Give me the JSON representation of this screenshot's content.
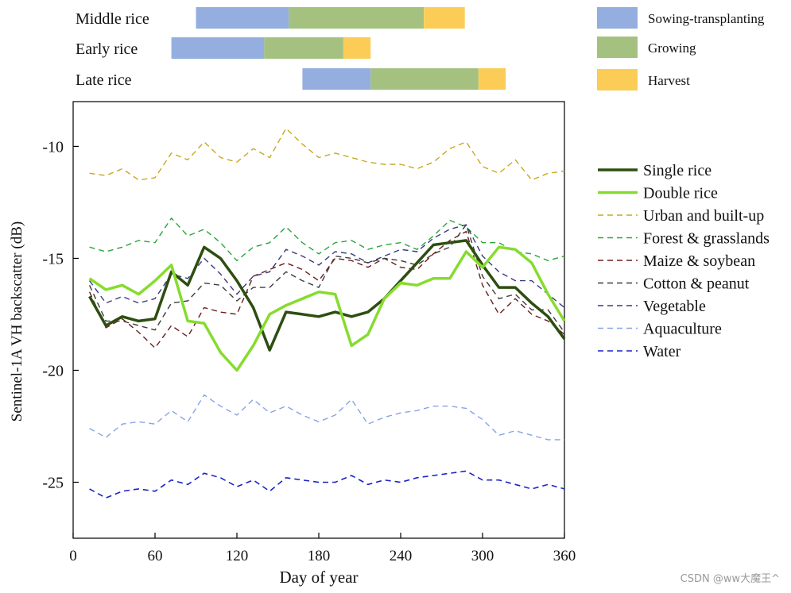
{
  "watermark": "CSDN @ww大魔王^",
  "phenology": {
    "rows": [
      {
        "label": "Middle rice",
        "stages": [
          {
            "stage": "sowing",
            "start": 90,
            "end": 158
          },
          {
            "stage": "growing",
            "start": 158,
            "end": 257
          },
          {
            "stage": "harvest",
            "start": 257,
            "end": 287
          }
        ]
      },
      {
        "label": "Early rice",
        "stages": [
          {
            "stage": "sowing",
            "start": 72,
            "end": 140
          },
          {
            "stage": "growing",
            "start": 140,
            "end": 198
          },
          {
            "stage": "harvest",
            "start": 198,
            "end": 218
          }
        ]
      },
      {
        "label": "Late rice",
        "stages": [
          {
            "stage": "sowing",
            "start": 168,
            "end": 218
          },
          {
            "stage": "growing",
            "start": 218,
            "end": 297
          },
          {
            "stage": "harvest",
            "start": 297,
            "end": 317
          }
        ]
      }
    ],
    "legend": [
      {
        "key": "sowing",
        "label": "Sowing-transplanting",
        "color": "#94aee0"
      },
      {
        "key": "growing",
        "label": "Growing",
        "color": "#a4c180"
      },
      {
        "key": "harvest",
        "label": "Harvest",
        "color": "#fbcd57"
      }
    ]
  },
  "chart_data": {
    "type": "line",
    "title": "",
    "xlabel": "Day of year",
    "ylabel": "Sentinel-1A VH backscatter (dB)",
    "xlim": [
      0,
      360
    ],
    "ylim": [
      -27.5,
      -8
    ],
    "xticks": [
      0,
      60,
      120,
      180,
      240,
      300,
      360
    ],
    "yticks": [
      -10,
      -15,
      -20,
      -25
    ],
    "grid": false,
    "legend_position": "right",
    "series": [
      {
        "name": "Single rice",
        "color": "#2d4e10",
        "width": 3.5,
        "dash": "",
        "x": [
          12,
          24,
          36,
          48,
          60,
          72,
          84,
          96,
          108,
          120,
          132,
          144,
          156,
          168,
          180,
          192,
          204,
          216,
          228,
          240,
          252,
          264,
          276,
          288,
          300,
          312,
          324,
          336,
          348,
          360
        ],
        "y": [
          -16.7,
          -18.0,
          -17.6,
          -17.8,
          -17.7,
          -15.6,
          -16.2,
          -14.5,
          -15.0,
          -16.0,
          -17.2,
          -19.1,
          -17.4,
          -17.5,
          -17.6,
          -17.4,
          -17.6,
          -17.4,
          -16.8,
          -16.0,
          -15.2,
          -14.4,
          -14.3,
          -14.2,
          -15.3,
          -16.3,
          -16.3,
          -17.0,
          -17.6,
          -18.6
        ]
      },
      {
        "name": "Double rice",
        "color": "#86dc2e",
        "width": 3.5,
        "dash": "",
        "x": [
          12,
          24,
          36,
          48,
          60,
          72,
          84,
          96,
          108,
          120,
          132,
          144,
          156,
          168,
          180,
          192,
          204,
          216,
          228,
          240,
          252,
          264,
          276,
          288,
          300,
          312,
          324,
          336,
          348,
          360
        ],
        "y": [
          -15.9,
          -16.4,
          -16.2,
          -16.6,
          -16.0,
          -15.3,
          -17.8,
          -17.9,
          -19.2,
          -20.0,
          -18.9,
          -17.5,
          -17.1,
          -16.8,
          -16.5,
          -16.6,
          -18.9,
          -18.4,
          -16.8,
          -16.1,
          -16.2,
          -15.9,
          -15.9,
          -14.7,
          -15.4,
          -14.5,
          -14.6,
          -15.2,
          -16.6,
          -17.8
        ]
      },
      {
        "name": "Urban and built-up",
        "color": "#c9a820",
        "width": 1.4,
        "dash": "7,5",
        "x": [
          12,
          24,
          36,
          48,
          60,
          72,
          84,
          96,
          108,
          120,
          132,
          144,
          156,
          168,
          180,
          192,
          204,
          216,
          228,
          240,
          252,
          264,
          276,
          288,
          300,
          312,
          324,
          336,
          348,
          360
        ],
        "y": [
          -11.2,
          -11.3,
          -11.0,
          -11.5,
          -11.4,
          -10.3,
          -10.6,
          -9.8,
          -10.5,
          -10.7,
          -10.1,
          -10.5,
          -9.2,
          -9.9,
          -10.5,
          -10.3,
          -10.5,
          -10.7,
          -10.8,
          -10.8,
          -11.0,
          -10.7,
          -10.1,
          -9.8,
          -10.9,
          -11.2,
          -10.6,
          -11.5,
          -11.2,
          -11.1
        ]
      },
      {
        "name": "Forest & grasslands",
        "color": "#2aa53a",
        "width": 1.4,
        "dash": "7,5",
        "x": [
          12,
          24,
          36,
          48,
          60,
          72,
          84,
          96,
          108,
          120,
          132,
          144,
          156,
          168,
          180,
          192,
          204,
          216,
          228,
          240,
          252,
          264,
          276,
          288,
          300,
          312,
          324,
          336,
          348,
          360
        ],
        "y": [
          -14.5,
          -14.7,
          -14.5,
          -14.2,
          -14.3,
          -13.2,
          -14.0,
          -13.7,
          -14.3,
          -15.1,
          -14.5,
          -14.3,
          -13.6,
          -14.3,
          -14.8,
          -14.3,
          -14.2,
          -14.6,
          -14.4,
          -14.3,
          -14.6,
          -14.0,
          -13.3,
          -13.6,
          -14.3,
          -14.3,
          -14.7,
          -14.8,
          -15.1,
          -14.9
        ]
      },
      {
        "name": "Maize & soybean",
        "color": "#6e1c1c",
        "width": 1.4,
        "dash": "7,5",
        "x": [
          12,
          24,
          36,
          48,
          60,
          72,
          84,
          96,
          108,
          120,
          132,
          144,
          156,
          168,
          180,
          192,
          204,
          216,
          228,
          240,
          252,
          264,
          276,
          288,
          300,
          312,
          324,
          336,
          348,
          360
        ],
        "y": [
          -16.5,
          -18.1,
          -17.7,
          -18.3,
          -19.0,
          -18.0,
          -18.5,
          -17.2,
          -17.4,
          -17.5,
          -15.8,
          -15.5,
          -15.2,
          -15.5,
          -16.0,
          -15.0,
          -15.1,
          -15.4,
          -15.0,
          -15.4,
          -15.5,
          -14.8,
          -14.2,
          -13.8,
          -16.2,
          -17.5,
          -16.8,
          -17.5,
          -17.8,
          -18.4
        ]
      },
      {
        "name": "Cotton & peanut",
        "color": "#3c3c3c",
        "width": 1.4,
        "dash": "7,5",
        "x": [
          12,
          24,
          36,
          48,
          60,
          72,
          84,
          96,
          108,
          120,
          132,
          144,
          156,
          168,
          180,
          192,
          204,
          216,
          228,
          240,
          252,
          264,
          276,
          288,
          300,
          312,
          324,
          336,
          348,
          360
        ],
        "y": [
          -16.2,
          -17.8,
          -17.8,
          -18.0,
          -18.2,
          -17.0,
          -16.9,
          -16.1,
          -16.2,
          -16.9,
          -16.3,
          -16.3,
          -15.6,
          -16.0,
          -16.3,
          -14.9,
          -15.0,
          -15.2,
          -15.0,
          -15.1,
          -15.3,
          -14.8,
          -14.5,
          -13.5,
          -15.8,
          -16.8,
          -16.6,
          -17.3,
          -17.3,
          -18.3
        ]
      },
      {
        "name": "Vegetable",
        "color": "#3a3a80",
        "width": 1.4,
        "dash": "7,5",
        "x": [
          12,
          24,
          36,
          48,
          60,
          72,
          84,
          96,
          108,
          120,
          132,
          144,
          156,
          168,
          180,
          192,
          204,
          216,
          228,
          240,
          252,
          264,
          276,
          288,
          300,
          312,
          324,
          336,
          348,
          360
        ],
        "y": [
          -16.0,
          -17.0,
          -16.7,
          -17.0,
          -16.8,
          -15.7,
          -15.9,
          -15.0,
          -15.7,
          -16.6,
          -15.8,
          -15.6,
          -14.6,
          -14.9,
          -15.3,
          -14.7,
          -14.8,
          -15.2,
          -14.9,
          -14.6,
          -14.7,
          -14.1,
          -13.7,
          -13.5,
          -14.9,
          -15.6,
          -16.0,
          -16.0,
          -16.6,
          -17.2
        ]
      },
      {
        "name": "Aquaculture",
        "color": "#86a4e6",
        "width": 1.4,
        "dash": "7,5",
        "x": [
          12,
          24,
          36,
          48,
          60,
          72,
          84,
          96,
          108,
          120,
          132,
          144,
          156,
          168,
          180,
          192,
          204,
          216,
          228,
          240,
          252,
          264,
          276,
          288,
          300,
          312,
          324,
          336,
          348,
          360
        ],
        "y": [
          -22.6,
          -23.0,
          -22.4,
          -22.3,
          -22.4,
          -21.8,
          -22.3,
          -21.1,
          -21.6,
          -22.0,
          -21.3,
          -21.9,
          -21.6,
          -22.0,
          -22.3,
          -22.0,
          -21.3,
          -22.4,
          -22.1,
          -21.9,
          -21.8,
          -21.6,
          -21.6,
          -21.7,
          -22.2,
          -22.9,
          -22.7,
          -22.9,
          -23.1,
          -23.1
        ]
      },
      {
        "name": "Water",
        "color": "#1a24c8",
        "width": 1.6,
        "dash": "7,5",
        "x": [
          12,
          24,
          36,
          48,
          60,
          72,
          84,
          96,
          108,
          120,
          132,
          144,
          156,
          168,
          180,
          192,
          204,
          216,
          228,
          240,
          252,
          264,
          276,
          288,
          300,
          312,
          324,
          336,
          348,
          360
        ],
        "y": [
          -25.3,
          -25.7,
          -25.4,
          -25.3,
          -25.4,
          -24.9,
          -25.1,
          -24.6,
          -24.8,
          -25.2,
          -24.9,
          -25.4,
          -24.8,
          -24.9,
          -25.0,
          -25.0,
          -24.7,
          -25.1,
          -24.9,
          -25.0,
          -24.8,
          -24.7,
          -24.6,
          -24.5,
          -24.9,
          -24.9,
          -25.1,
          -25.3,
          -25.1,
          -25.3
        ]
      }
    ]
  }
}
